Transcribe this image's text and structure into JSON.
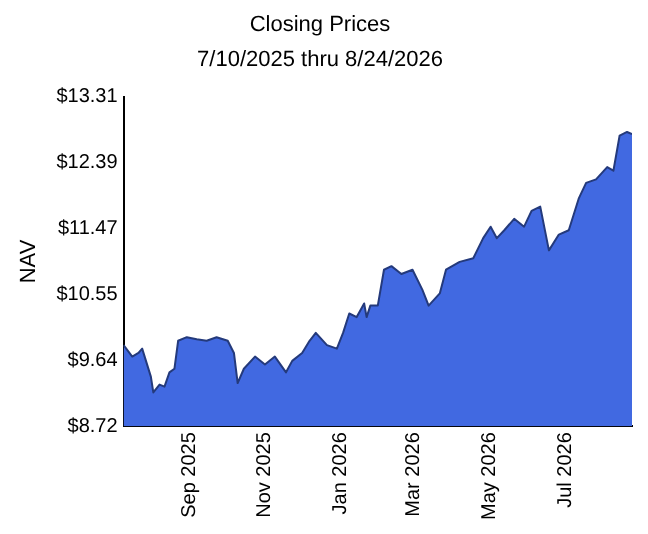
{
  "chart_data": {
    "type": "area",
    "title": "Closing Prices",
    "subtitle": "7/10/2025 thru 8/24/2026",
    "ylabel": "NAV",
    "x": [
      "2025-07-10",
      "2025-07-17",
      "2025-07-22",
      "2025-07-25",
      "2025-08-01",
      "2025-08-03",
      "2025-08-08",
      "2025-08-12",
      "2025-08-16",
      "2025-08-20",
      "2025-08-23",
      "2025-08-30",
      "2025-09-07",
      "2025-09-15",
      "2025-09-23",
      "2025-10-02",
      "2025-10-07",
      "2025-10-10",
      "2025-10-15",
      "2025-10-24",
      "2025-11-01",
      "2025-11-09",
      "2025-11-18",
      "2025-11-23",
      "2025-12-01",
      "2025-12-07",
      "2025-12-12",
      "2025-12-21",
      "2025-12-29",
      "2026-01-03",
      "2026-01-08",
      "2026-01-14",
      "2026-01-20",
      "2026-01-22",
      "2026-01-25",
      "2026-01-31",
      "2026-02-05",
      "2026-02-11",
      "2026-02-19",
      "2026-02-28",
      "2026-03-08",
      "2026-03-13",
      "2026-03-22",
      "2026-03-27",
      "2026-04-07",
      "2026-04-18",
      "2026-04-26",
      "2026-05-02",
      "2026-05-07",
      "2026-05-13",
      "2026-05-21",
      "2026-05-29",
      "2026-06-04",
      "2026-06-11",
      "2026-06-18",
      "2026-06-26",
      "2026-07-04",
      "2026-07-12",
      "2026-07-18",
      "2026-07-26",
      "2026-08-04",
      "2026-08-09",
      "2026-08-14",
      "2026-08-20",
      "2026-08-24"
    ],
    "series": [
      {
        "color": "#4169e1",
        "values": [
          9.85,
          9.69,
          9.74,
          9.8,
          9.41,
          9.19,
          9.3,
          9.27,
          9.47,
          9.52,
          9.91,
          9.96,
          9.93,
          9.91,
          9.96,
          9.91,
          9.74,
          9.32,
          9.52,
          9.69,
          9.58,
          9.69,
          9.47,
          9.63,
          9.74,
          9.91,
          10.02,
          9.85,
          9.8,
          10.02,
          10.29,
          10.24,
          10.43,
          10.24,
          10.4,
          10.4,
          10.9,
          10.95,
          10.84,
          10.9,
          10.62,
          10.4,
          10.57,
          10.9,
          11.01,
          11.06,
          11.34,
          11.5,
          11.34,
          11.45,
          11.61,
          11.5,
          11.72,
          11.78,
          11.17,
          11.39,
          11.45,
          11.89,
          12.11,
          12.16,
          12.33,
          12.28,
          12.77,
          12.82,
          12.79
        ]
      }
    ],
    "xlim": [
      "2025-07-10",
      "2026-08-24"
    ],
    "xticks": [
      {
        "value": "2025-09-01",
        "label": "Sep 2025"
      },
      {
        "value": "2025-11-01",
        "label": "Nov 2025"
      },
      {
        "value": "2026-01-01",
        "label": "Jan 2026"
      },
      {
        "value": "2026-03-01",
        "label": "Mar 2026"
      },
      {
        "value": "2026-05-01",
        "label": "May 2026"
      },
      {
        "value": "2026-07-01",
        "label": "Jul 2026"
      }
    ],
    "ylim": [
      8.72,
      13.31
    ],
    "yticks": [
      {
        "value": 8.72,
        "label": "$8.72"
      },
      {
        "value": 9.64,
        "label": "$9.64"
      },
      {
        "value": 10.55,
        "label": "$10.55"
      },
      {
        "value": 11.47,
        "label": "$11.47"
      },
      {
        "value": 12.39,
        "label": "$12.39"
      },
      {
        "value": 13.31,
        "label": "$13.31"
      }
    ],
    "grid": false,
    "legend": false,
    "marker": "none",
    "line_style": "solid"
  }
}
